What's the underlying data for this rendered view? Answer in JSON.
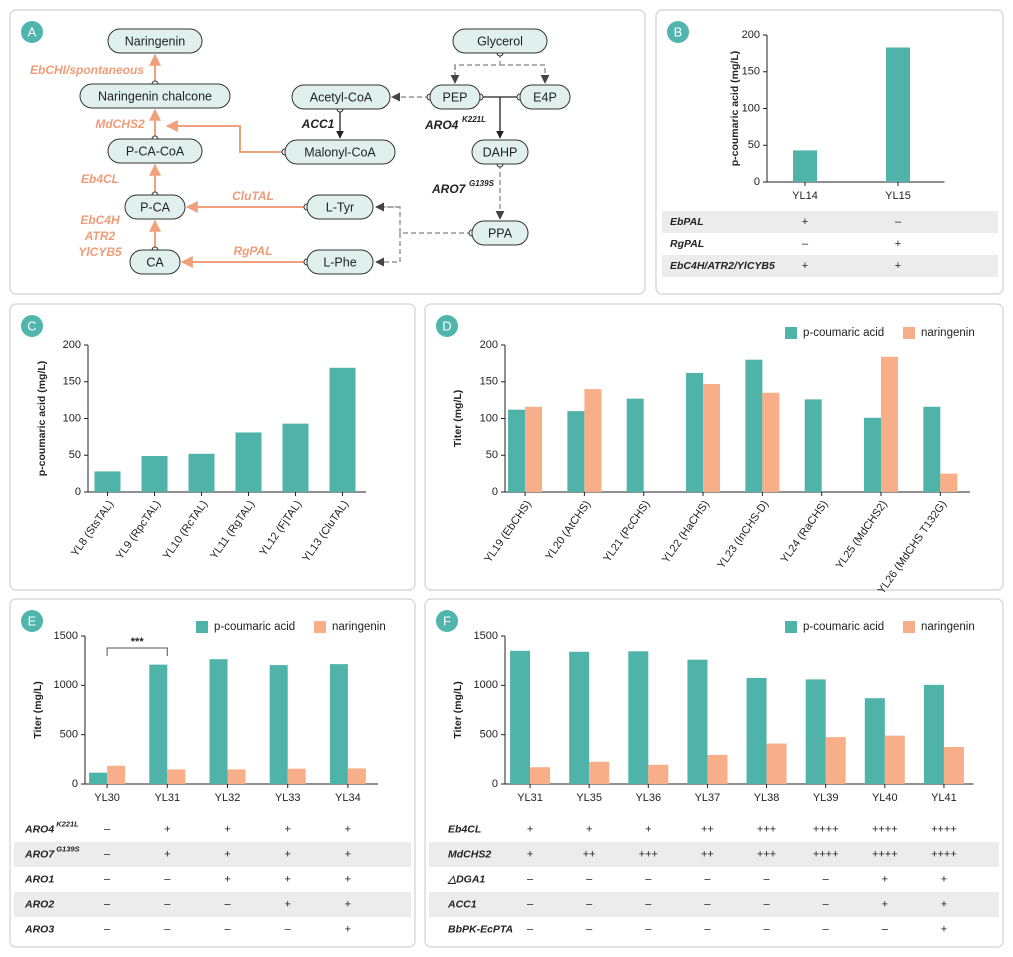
{
  "pathway": {
    "panel": "A",
    "nodes": [
      "Naringenin",
      "Naringenin chalcone",
      "P-CA-CoA",
      "P-CA",
      "CA",
      "Acetyl-CoA",
      "Malonyl-CoA",
      "L-Tyr",
      "L-Phe",
      "Glycerol",
      "PEP",
      "E4P",
      "DAHP",
      "PPA"
    ],
    "enzymes": [
      "EbCHI/spontaneous",
      "MdCHS2",
      "Eb4CL",
      "EbC4H",
      "ATR2",
      "YlCYB5",
      "CluTAL",
      "RgPAL"
    ],
    "regulators": [
      {
        "name": "ACC1"
      },
      {
        "name": "ARO4",
        "sup": "K221L"
      },
      {
        "name": "ARO7",
        "sup": "G139S"
      }
    ]
  },
  "chart_data": [
    {
      "panel": "B",
      "type": "bar",
      "ylabel": "p-coumaric acid (mg/L)",
      "categories": [
        "YL14",
        "YL15"
      ],
      "values": [
        43,
        183
      ],
      "color": "#4fb3aa",
      "ylim": [
        0,
        200
      ],
      "yticks": [
        0,
        50,
        100,
        150,
        200
      ],
      "table": [
        {
          "label": "EbPAL",
          "values": [
            "+",
            "–"
          ]
        },
        {
          "label": "RgPAL",
          "values": [
            "–",
            "+"
          ]
        },
        {
          "label": "EbC4H/ATR2/YlCYB5",
          "values": [
            "+",
            "+"
          ]
        }
      ]
    },
    {
      "panel": "C",
      "type": "bar",
      "ylabel": "p-coumaric acid (mg/L)",
      "categories": [
        "YL8 (StsTAL)",
        "YL9 (RpcTAL)",
        "YL10 (RcTAL)",
        "YL11 (RgTAL)",
        "YL12 (FjTAL)",
        "YL13 (CluTAL)"
      ],
      "values": [
        28,
        49,
        52,
        81,
        93,
        169
      ],
      "color": "#4fb3aa",
      "ylim": [
        0,
        200
      ],
      "yticks": [
        0,
        50,
        100,
        150,
        200
      ]
    },
    {
      "panel": "D",
      "type": "grouped_bar",
      "ylabel": "Titer (mg/L)",
      "categories": [
        "YL19 (EbCHS)",
        "YL20 (AtCHS)",
        "YL21 (PcCHS)",
        "YL22 (HaCHS)",
        "YL23 (InCHS-D)",
        "YL24 (RaCHS)",
        "YL25 (MdCHS2)",
        "YL26 (MdCHS T132G)"
      ],
      "series": [
        {
          "name": "p-coumaric acid",
          "color": "#4fb3aa",
          "values": [
            112,
            110,
            127,
            162,
            180,
            126,
            101,
            116
          ]
        },
        {
          "name": "naringenin",
          "color": "#f8ae89",
          "values": [
            116,
            140,
            0,
            147,
            135,
            0,
            184,
            25
          ]
        }
      ],
      "ylim": [
        0,
        200
      ],
      "yticks": [
        0,
        50,
        100,
        150,
        200
      ]
    },
    {
      "panel": "E",
      "type": "grouped_bar",
      "ylabel": "Titer (mg/L)",
      "categories": [
        "YL30",
        "YL31",
        "YL32",
        "YL33",
        "YL34"
      ],
      "series": [
        {
          "name": "p-coumaric acid",
          "color": "#4fb3aa",
          "values": [
            115,
            1210,
            1265,
            1205,
            1215
          ]
        },
        {
          "name": "naringenin",
          "color": "#f8ae89",
          "values": [
            185,
            148,
            148,
            155,
            158
          ]
        }
      ],
      "ylim": [
        0,
        1500
      ],
      "yticks": [
        0,
        500,
        1000,
        1500
      ],
      "significance": {
        "label": "***",
        "categories": [
          "YL30",
          "YL31"
        ]
      },
      "table": [
        {
          "label": "ARO4",
          "sup": "K221L",
          "values": [
            "–",
            "+",
            "+",
            "+",
            "+"
          ]
        },
        {
          "label": "ARO7",
          "sup": "G139S",
          "values": [
            "–",
            "+",
            "+",
            "+",
            "+"
          ]
        },
        {
          "label": "ARO1",
          "values": [
            "–",
            "–",
            "+",
            "+",
            "+"
          ]
        },
        {
          "label": "ARO2",
          "values": [
            "–",
            "–",
            "–",
            "+",
            "+"
          ]
        },
        {
          "label": "ARO3",
          "values": [
            "–",
            "–",
            "–",
            "–",
            "+"
          ]
        }
      ]
    },
    {
      "panel": "F",
      "type": "grouped_bar",
      "ylabel": "Titer (mg/L)",
      "categories": [
        "YL31",
        "YL35",
        "YL36",
        "YL37",
        "YL38",
        "YL39",
        "YL40",
        "YL41"
      ],
      "series": [
        {
          "name": "p-coumaric acid",
          "color": "#4fb3aa",
          "values": [
            1350,
            1340,
            1345,
            1260,
            1075,
            1060,
            870,
            1005
          ]
        },
        {
          "name": "naringenin",
          "color": "#f8ae89",
          "values": [
            170,
            225,
            195,
            295,
            410,
            475,
            490,
            375
          ]
        }
      ],
      "ylim": [
        0,
        1500
      ],
      "yticks": [
        0,
        500,
        1000,
        1500
      ],
      "table": [
        {
          "label": "Eb4CL",
          "values": [
            "+",
            "+",
            "+",
            "++",
            "+++",
            "++++",
            "++++",
            "++++"
          ]
        },
        {
          "label": "MdCHS2",
          "values": [
            "+",
            "++",
            "+++",
            "++",
            "+++",
            "++++",
            "++++",
            "++++"
          ]
        },
        {
          "label": "△DGA1",
          "values": [
            "–",
            "–",
            "–",
            "–",
            "–",
            "–",
            "+",
            "+"
          ]
        },
        {
          "label": "ACC1",
          "values": [
            "–",
            "–",
            "–",
            "–",
            "–",
            "–",
            "+",
            "+"
          ]
        },
        {
          "label": "BbPK-EcPTA",
          "values": [
            "–",
            "–",
            "–",
            "–",
            "–",
            "–",
            "–",
            "+"
          ]
        }
      ]
    }
  ]
}
